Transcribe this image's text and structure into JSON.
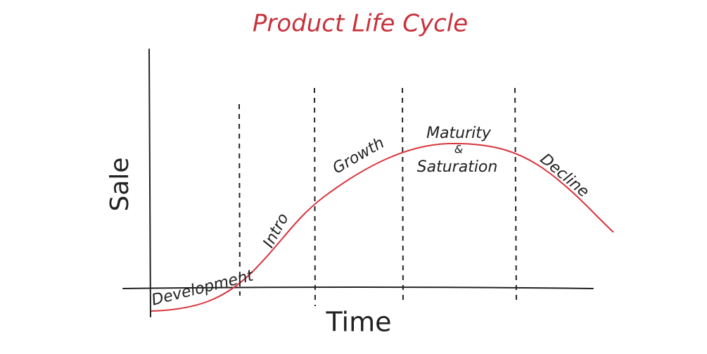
{
  "title": "Product Life Cycle",
  "axes": {
    "y": "Sale",
    "x": "Time"
  },
  "stages": [
    "Development",
    "Intro",
    "Growth",
    "Maturity",
    "&",
    "Saturation",
    "Decline"
  ]
}
